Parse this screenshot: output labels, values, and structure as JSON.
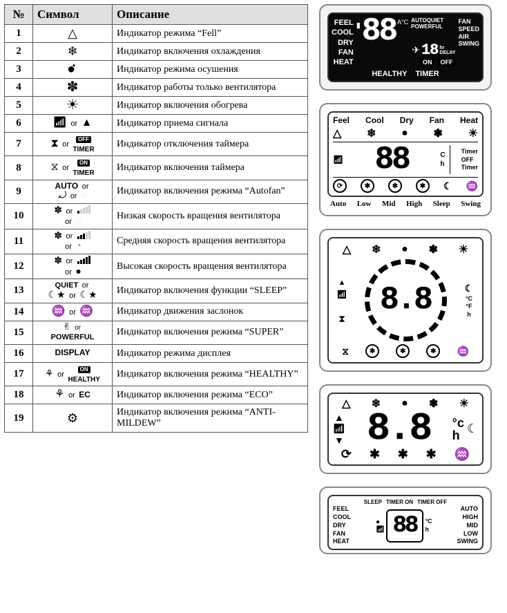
{
  "table": {
    "headers": {
      "num": "№",
      "sym": "Символ",
      "desc": "Описание"
    },
    "rows": [
      {
        "n": "1",
        "desc": "Индикатор режима “Fell”",
        "sym_html": "<span style='font-size:18px'>△</span>"
      },
      {
        "n": "2",
        "desc": "Индикатор включения охлаждения",
        "sym_html": "<span style='font-size:18px'>❄</span>"
      },
      {
        "n": "3",
        "desc": "Индикатор  режима осушения",
        "sym_html": "<span style='font-size:20px'>●</span><span style='position:relative;top:-10px;left:-4px;font-size:8px'>▴</span>"
      },
      {
        "n": "4",
        "desc": "Индикатор работы только вентилятора",
        "sym_html": "<span style='font-size:20px'>✽</span>"
      },
      {
        "n": "5",
        "desc": "Индикатор включения обогрева",
        "sym_html": "<span style='font-size:20px'>☀︎</span>"
      },
      {
        "n": "6",
        "desc": "Индикатор приема сигнала",
        "sym_html": "<span style='font-size:16px'>📶︎</span> <span class='or'>or</span> <span style='font-size:16px'>▲</span>"
      },
      {
        "n": "7",
        "desc": "Индикатор отключения таймера",
        "sym_html": "<span style='font-size:16px'>⧗</span> <span class='or'>or</span> <span style='display:inline-block;vertical-align:middle;text-align:center'><span class='boxlbl'>OFF</span><br><span class='tiny'>TIMER</span></span>"
      },
      {
        "n": "8",
        "desc": "Индикатор включения таймера",
        "sym_html": "<span style='font-size:16px'>⧖</span> <span class='or'>or</span> <span style='display:inline-block;vertical-align:middle;text-align:center'><span class='boxlbl'>ON</span><br><span class='tiny'>TIMER</span></span>"
      },
      {
        "n": "9",
        "desc": "Индикатор включения режима “Autofan”",
        "sym_html": "<span class='tiny' style='font-size:12px'>AUTO</span> <span class='or'>or</span><br><span style='font-size:14px'>⤾</span> <span class='or'>or</span> <span style='font-size:14px;opacity:.25'>◌</span>"
      },
      {
        "n": "10",
        "desc": "Низкая скорость вращения вентилятора",
        "sym_html": "<span style='font-size:14px'>✽</span> <span class='or'>or</span> <span class='sig-bars'><i style='height:4px'></i><i style='height:6px;opacity:.2'></i><i style='height:8px;opacity:.2'></i><i style='height:10px;opacity:.2'></i><i style='height:12px;opacity:.2'></i></span><br><span class='or'>or</span> <span style='font-size:14px;opacity:.25'>◌</span>"
      },
      {
        "n": "11",
        "desc": "Средняя скорость вращения вентилятора",
        "sym_html": "<span style='font-size:14px'>✽</span> <span class='or'>or</span> <span class='sig-bars'><i style='height:4px'></i><i style='height:6px'></i><i style='height:8px'></i><i style='height:10px;opacity:.2'></i><i style='height:12px;opacity:.2'></i></span><br><span class='or'>or</span> <span style='font-size:14px;opacity:.45'>◔</span>"
      },
      {
        "n": "12",
        "desc": "Высокая скорость вращения вентилятора",
        "sym_html": "<span style='font-size:14px'>✽</span> <span class='or'>or</span> <span class='sig-bars'><i style='height:4px'></i><i style='height:6px'></i><i style='height:8px'></i><i style='height:10px'></i><i style='height:12px'></i></span><br><span class='or'>or</span> <span style='font-size:14px'>●</span>"
      },
      {
        "n": "13",
        "desc": "Индикатор включения функции “SLEEP”",
        "sym_html": "<span class='tiny' style='font-size:11px'>QUIET</span> <span class='or'>or</span><br><span style='font-size:14px'>☾★</span> <span class='or'>or</span> <span style='font-size:14px'>☾★</span>"
      },
      {
        "n": "14",
        "desc": "Индикатор движения заслонок",
        "sym_html": "<span style='font-size:16px'>♒</span> <span class='or'>or</span> <span style='font-size:16px'>♒</span>"
      },
      {
        "n": "15",
        "desc": "Индикатор включения режима “SUPER”",
        "sym_html": "<span style='font-size:14px'>✌︎</span> <span class='or' style='font-size:10px'>or</span><br><span class='tiny' style='font-size:11px;letter-spacing:0'>POWERFUL</span>"
      },
      {
        "n": "16",
        "desc": "Индикатор режима дисплея",
        "sym_html": "<span class='tiny' style='font-size:12px;letter-spacing:0'>DISPLAY</span>"
      },
      {
        "n": "17",
        "desc": "Индикатор включения режима “HEALTHY”",
        "sym_html": "<span style='font-size:14px'>⚘︎</span> <span class='or'>or</span> <span style='display:inline-block;vertical-align:middle;text-align:center'><span class='boxlbl'>ON</span><br><span class='tiny'>HEALTHY</span></span>"
      },
      {
        "n": "18",
        "desc": "Индикатор включения режима “ECO”",
        "sym_html": "<span style='font-size:16px'>⚘︎</span> <span class='or'>or</span> <span class='tiny' style='font-size:12px'>EC</span>"
      },
      {
        "n": "19",
        "desc": "Индикатор включения режима “ANTI-MILDEW”",
        "sym_html": "<span style='font-size:18px'>⚙︎</span>"
      }
    ]
  },
  "display1": {
    "left_col": [
      "FEEL",
      "COOL",
      "DRY",
      "FAN",
      "HEAT"
    ],
    "right_col": [
      "FAN",
      "SPEED",
      "",
      "AIR",
      "SWING"
    ],
    "seg_main": "88",
    "seg_unit": "A°C",
    "mid_labels": [
      "AUTOQUIET",
      "POWERFUL"
    ],
    "sub_seg": "18",
    "sub_labels": [
      "hr",
      "DELAY"
    ],
    "on_off": [
      "ON",
      "OFF"
    ],
    "bottom": [
      "HEALTHY",
      "TIMER"
    ]
  },
  "display2": {
    "top_row": [
      "Feel",
      "Cool",
      "Dry",
      "Fan",
      "Heat"
    ],
    "seg": "88",
    "seg_side": [
      "C",
      "h"
    ],
    "right_col": [
      "Timer",
      "OFF",
      "Timer"
    ],
    "bottom": [
      "Auto",
      "Low",
      "Mid",
      "High",
      "Sleep",
      "Swing"
    ]
  },
  "display3": {
    "seg": "8.8",
    "side_unit": [
      "°C",
      "°F",
      "h"
    ]
  },
  "display4": {
    "seg": "8.8",
    "unit_top": "°c",
    "unit_bot": "h"
  },
  "display5": {
    "top_labels": [
      "SLEEP",
      "TIMER ON",
      "TIMER OFF"
    ],
    "left_col": [
      "FEEL",
      "COOL",
      "DRY",
      "FAN",
      "HEAT"
    ],
    "right_col": [
      "AUTO",
      "HIGH",
      "MID",
      "LOW",
      "SWING"
    ],
    "seg": "88",
    "seg_side": [
      "°C",
      "h"
    ]
  },
  "icons": {
    "feel": "△",
    "cool": "❄",
    "dry": "●",
    "fan": "✽",
    "heat": "☀︎",
    "sleep": "☾",
    "swing": "♒",
    "signal": "📶︎",
    "clock": "⧖"
  }
}
